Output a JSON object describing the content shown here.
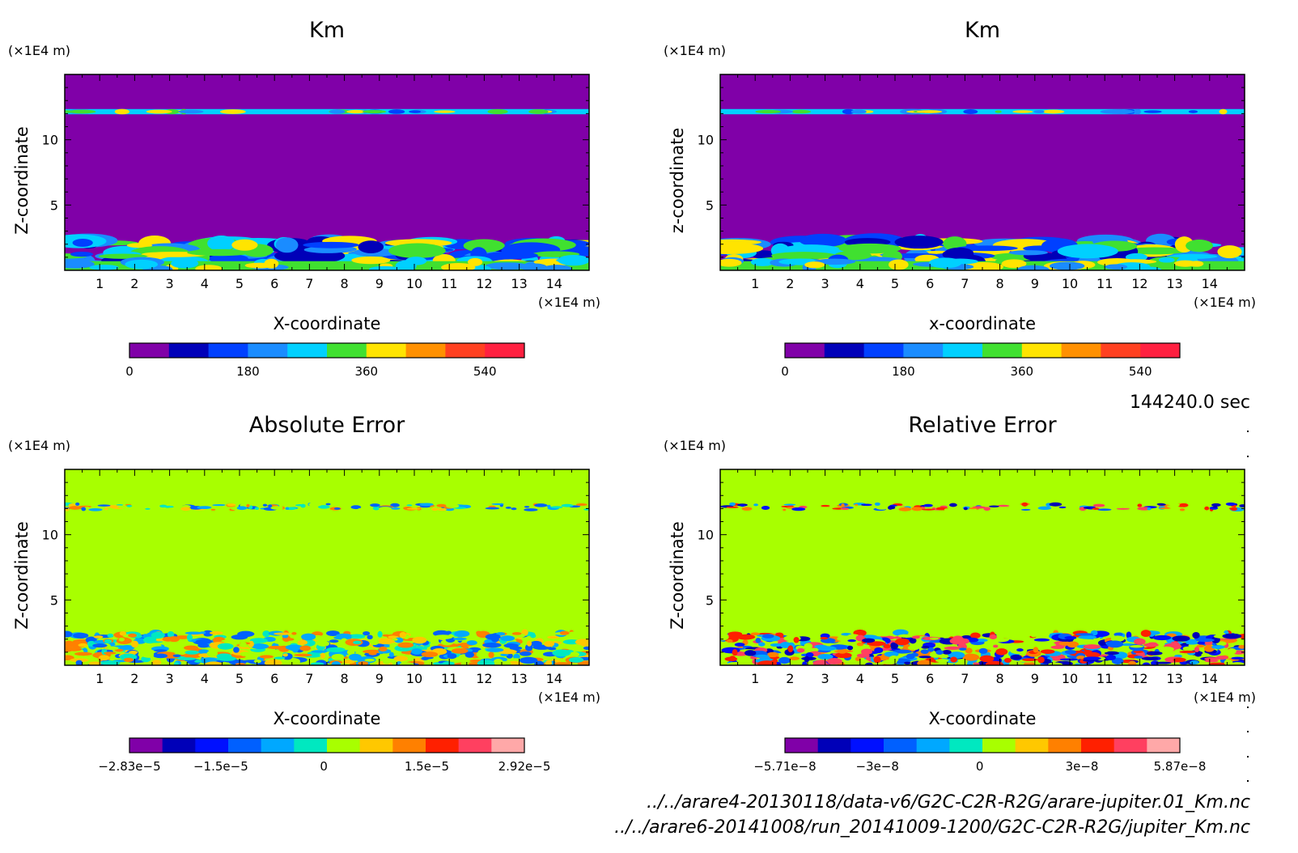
{
  "figure": {
    "time_label": "144240.0 sec",
    "file_paths": [
      "../../arare4-20130118/data-v6/G2C-C2R-R2G/arare-jupiter.01_Km.nc",
      "../../arare6-20141008/run_20141009-1200/G2C-C2R-R2G/jupiter_Km.nc"
    ]
  },
  "chart_data": [
    {
      "type": "heatmap",
      "title": "Km",
      "xlabel": "X-coordinate",
      "ylabel": "Z-coordinate",
      "x_unit": "(×1E4 m)",
      "y_unit": "(×1E4 m)",
      "xlim": [
        0,
        15
      ],
      "ylim": [
        0,
        15
      ],
      "x_ticks": [
        1,
        2,
        3,
        4,
        5,
        6,
        7,
        8,
        9,
        10,
        11,
        12,
        13,
        14
      ],
      "y_ticks": [
        5,
        10
      ],
      "background_color": "#8000a8",
      "colorbar": {
        "ticks": [
          "0",
          "180",
          "360",
          "540"
        ],
        "tick_values": [
          0,
          180,
          360,
          540
        ],
        "range": [
          0,
          600
        ],
        "colors": [
          "#8000a8",
          "#0000b8",
          "#0040ff",
          "#1a8cff",
          "#00d0ff",
          "#40e030",
          "#ffe400",
          "#ff9000",
          "#ff4020",
          "#ff2040"
        ]
      }
    },
    {
      "type": "heatmap",
      "title": "Km",
      "xlabel": "x-coordinate",
      "ylabel": "z-coordinate",
      "x_unit": "(×1E4 m)",
      "y_unit": "(×1E4 m)",
      "xlim": [
        0,
        15
      ],
      "ylim": [
        0,
        15
      ],
      "x_ticks": [
        1,
        2,
        3,
        4,
        5,
        6,
        7,
        8,
        9,
        10,
        11,
        12,
        13,
        14
      ],
      "y_ticks": [
        5,
        10
      ],
      "background_color": "#8000a8",
      "colorbar": {
        "ticks": [
          "0",
          "180",
          "360",
          "540"
        ],
        "tick_values": [
          0,
          180,
          360,
          540
        ],
        "range": [
          0,
          600
        ],
        "colors": [
          "#8000a8",
          "#0000b8",
          "#0040ff",
          "#1a8cff",
          "#00d0ff",
          "#40e030",
          "#ffe400",
          "#ff9000",
          "#ff4020",
          "#ff2040"
        ]
      }
    },
    {
      "type": "heatmap",
      "title": "Absolute Error",
      "xlabel": "X-coordinate",
      "ylabel": "Z-coordinate",
      "x_unit": "(×1E4 m)",
      "y_unit": "(×1E4 m)",
      "xlim": [
        0,
        15
      ],
      "ylim": [
        0,
        15
      ],
      "x_ticks": [
        1,
        2,
        3,
        4,
        5,
        6,
        7,
        8,
        9,
        10,
        11,
        12,
        13,
        14
      ],
      "y_ticks": [
        5,
        10
      ],
      "background_color": "#a8ff00",
      "colorbar": {
        "ticks": [
          "−2.83e−5",
          "−1.5e−5",
          "0",
          "1.5e−5",
          "2.92e−5"
        ],
        "tick_values": [
          -2.83e-05,
          -1.5e-05,
          0,
          1.5e-05,
          2.92e-05
        ],
        "range": [
          -2.83e-05,
          2.92e-05
        ],
        "colors": [
          "#8000a8",
          "#0000b8",
          "#0010ff",
          "#0060ff",
          "#00a8ff",
          "#00e8c0",
          "#a8ff00",
          "#ffc800",
          "#ff8000",
          "#ff2000",
          "#ff4060",
          "#ffa8a8"
        ]
      }
    },
    {
      "type": "heatmap",
      "title": "Relative Error",
      "xlabel": "X-coordinate",
      "ylabel": "Z-coordinate",
      "x_unit": "(×1E4 m)",
      "y_unit": "(×1E4 m)",
      "xlim": [
        0,
        15
      ],
      "ylim": [
        0,
        15
      ],
      "x_ticks": [
        1,
        2,
        3,
        4,
        5,
        6,
        7,
        8,
        9,
        10,
        11,
        12,
        13,
        14
      ],
      "y_ticks": [
        5,
        10
      ],
      "background_color": "#a8ff00",
      "colorbar": {
        "ticks": [
          "−5.71e−8",
          "−3e−8",
          "0",
          "3e−8",
          "5.87e−8"
        ],
        "tick_values": [
          -5.71e-08,
          -3e-08,
          0,
          3e-08,
          5.87e-08
        ],
        "range": [
          -5.71e-08,
          5.87e-08
        ],
        "colors": [
          "#8000a8",
          "#0000b8",
          "#0010ff",
          "#0060ff",
          "#00a8ff",
          "#00e8c0",
          "#a8ff00",
          "#ffc800",
          "#ff8000",
          "#ff2000",
          "#ff4060",
          "#ffa8a8"
        ]
      }
    }
  ]
}
